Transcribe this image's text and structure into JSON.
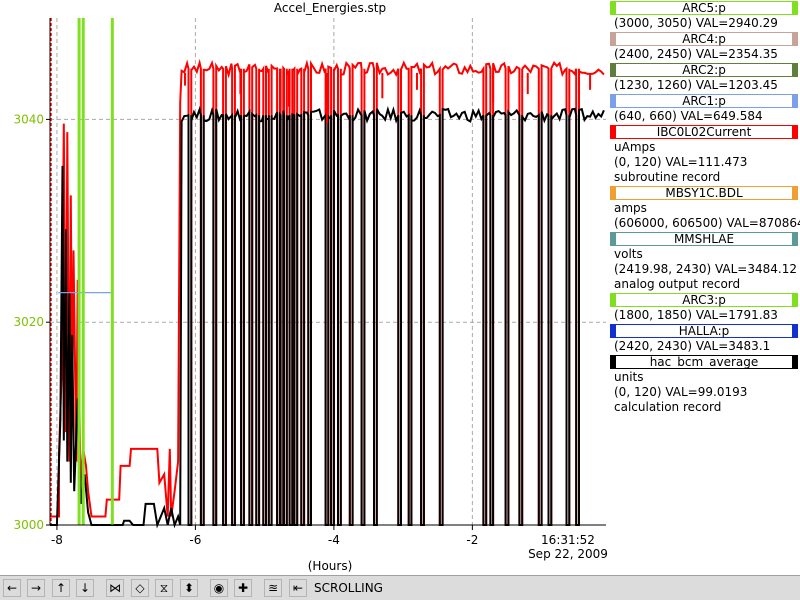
{
  "title": "Accel_Energies.stp",
  "chart_data": {
    "type": "line",
    "title": "Accel_Energies.stp",
    "xlabel": "(Hours)",
    "x_ticks": [
      "-8",
      "-6",
      "-4",
      "-2"
    ],
    "x_tick_values": [
      -8,
      -6,
      -4,
      -2
    ],
    "xlim": [
      -8.1,
      -0.07
    ],
    "right_tick_label": [
      "16:31:52",
      "Sep 22, 2009"
    ],
    "ylim": [
      3000,
      3050
    ],
    "y_ticks": [
      "3000",
      "3020",
      "3040"
    ],
    "y_tick_values": [
      3000,
      3020,
      3040
    ],
    "grid": true,
    "legend_position": "right",
    "series": [
      {
        "name": "IBC0L02Current",
        "color": "#ff0000",
        "axis": "right",
        "points": [
          [
            -8.1,
            2
          ],
          [
            -7.97,
            2
          ],
          [
            -7.97,
            17
          ],
          [
            -7.93,
            37
          ],
          [
            -7.9,
            95
          ],
          [
            -7.87,
            22
          ],
          [
            -7.85,
            93
          ],
          [
            -7.82,
            15
          ],
          [
            -7.8,
            78
          ],
          [
            -7.78,
            28
          ],
          [
            -7.76,
            65
          ],
          [
            -7.72,
            15
          ],
          [
            -7.7,
            58
          ],
          [
            -7.66,
            10
          ],
          [
            -7.62,
            18
          ],
          [
            -7.58,
            14
          ],
          [
            -7.55,
            8
          ],
          [
            -7.5,
            2
          ],
          [
            -7.45,
            2
          ],
          [
            -7.3,
            2
          ],
          [
            -7.28,
            6
          ],
          [
            -7.1,
            6
          ],
          [
            -7.08,
            14
          ],
          [
            -6.95,
            14
          ],
          [
            -6.93,
            18
          ],
          [
            -6.55,
            18
          ],
          [
            -6.52,
            10
          ],
          [
            -6.45,
            12
          ],
          [
            -6.4,
            2
          ],
          [
            -6.37,
            18
          ],
          [
            -6.35,
            2
          ],
          [
            -6.3,
            8
          ],
          [
            -6.25,
            15
          ],
          [
            -6.22,
            100
          ],
          [
            -6.2,
            106
          ],
          [
            -6.1,
            104
          ],
          [
            -5.9,
            106
          ],
          [
            -5.6,
            107
          ],
          [
            -5.3,
            106
          ],
          [
            -5.0,
            107
          ],
          [
            -4.6,
            106
          ],
          [
            -4.2,
            107
          ],
          [
            -3.8,
            107
          ],
          [
            -3.4,
            107
          ],
          [
            -3.0,
            107
          ],
          [
            -2.6,
            107
          ],
          [
            -2.2,
            107
          ],
          [
            -1.8,
            107
          ],
          [
            -1.4,
            107
          ],
          [
            -1.0,
            107
          ],
          [
            -0.6,
            108
          ],
          [
            -0.07,
            108
          ]
        ]
      },
      {
        "name": "hac_bcm_average",
        "color": "#000000",
        "axis": "right",
        "points": [
          [
            -8.1,
            0
          ],
          [
            -8.0,
            0
          ],
          [
            -7.98,
            10
          ],
          [
            -7.95,
            25
          ],
          [
            -7.92,
            85
          ],
          [
            -7.9,
            20
          ],
          [
            -7.87,
            70
          ],
          [
            -7.85,
            15
          ],
          [
            -7.82,
            55
          ],
          [
            -7.8,
            10
          ],
          [
            -7.78,
            45
          ],
          [
            -7.75,
            8
          ],
          [
            -7.7,
            30
          ],
          [
            -7.65,
            5
          ],
          [
            -7.6,
            12
          ],
          [
            -7.55,
            3
          ],
          [
            -7.5,
            0
          ],
          [
            -7.3,
            0
          ],
          [
            -7.05,
            0
          ],
          [
            -7.03,
            1
          ],
          [
            -6.95,
            1
          ],
          [
            -6.9,
            0
          ],
          [
            -6.75,
            0
          ],
          [
            -6.72,
            5
          ],
          [
            -6.6,
            5
          ],
          [
            -6.55,
            0
          ],
          [
            -6.45,
            4
          ],
          [
            -6.4,
            0
          ],
          [
            -6.35,
            4
          ],
          [
            -6.3,
            0
          ],
          [
            -6.25,
            2
          ],
          [
            -6.22,
            0
          ],
          [
            -6.2,
            94
          ],
          [
            -6.1,
            95
          ],
          [
            -5.9,
            95
          ],
          [
            -5.6,
            96
          ],
          [
            -5.3,
            95
          ],
          [
            -5.0,
            96
          ],
          [
            -4.6,
            95
          ],
          [
            -4.2,
            96
          ],
          [
            -3.8,
            96
          ],
          [
            -3.4,
            96
          ],
          [
            -3.0,
            96
          ],
          [
            -2.6,
            96
          ],
          [
            -2.2,
            96
          ],
          [
            -1.8,
            96
          ],
          [
            -1.4,
            96
          ],
          [
            -1.0,
            96
          ],
          [
            -0.6,
            97
          ],
          [
            -0.07,
            97
          ]
        ]
      },
      {
        "name": "ARC1:p",
        "color": "#7ca0e8",
        "axis": "right",
        "points": [
          [
            -7.98,
            55
          ],
          [
            -7.2,
            55
          ]
        ]
      },
      {
        "name": "ARC3:p",
        "color": "#7fe020",
        "axis": "right",
        "style": "vertical",
        "points": [
          [
            -7.68,
            120
          ],
          [
            -7.68,
            0
          ],
          [
            -7.62,
            120
          ],
          [
            -7.62,
            0
          ],
          [
            -7.2,
            120
          ],
          [
            -7.2,
            0
          ]
        ]
      }
    ],
    "dropouts_x": [
      -6.08,
      -5.9,
      -5.72,
      -5.58,
      -5.45,
      -5.32,
      -5.2,
      -5.1,
      -5.0,
      -4.92,
      -4.8,
      -4.75,
      -4.7,
      -4.62,
      -4.55,
      -4.45,
      -4.35,
      -4.1,
      -4.02,
      -3.92,
      -3.75,
      -3.58,
      -3.4,
      -3.05,
      -2.9,
      -2.72,
      -2.45,
      -1.82,
      -1.72,
      -1.5,
      -1.3,
      -1.02,
      -0.88,
      -0.62,
      -0.48
    ],
    "red_spikes": [
      [
        -6.15,
        -3
      ],
      [
        -5.35,
        -5
      ],
      [
        -4.65,
        -8
      ],
      [
        -4.1,
        -12
      ],
      [
        -3.3,
        -6
      ],
      [
        -2.8,
        -4
      ],
      [
        -1.7,
        -7
      ],
      [
        -1.2,
        -5
      ],
      [
        -0.3,
        -4
      ]
    ]
  },
  "legend": [
    {
      "name": "ARC5:p",
      "color": "#7fe020",
      "lines": [
        "(3000, 3050) VAL=2940.29"
      ]
    },
    {
      "name": "ARC4:p",
      "color": "#c9a29a",
      "lines": [
        "(2400, 2450) VAL=2354.35"
      ]
    },
    {
      "name": "ARC2:p",
      "color": "#5c7f3c",
      "lines": [
        "(1230, 1260) VAL=1203.45"
      ]
    },
    {
      "name": "ARC1:p",
      "color": "#7ca0e8",
      "lines": [
        "(640, 660) VAL=649.584"
      ]
    },
    {
      "name": "IBC0L02Current",
      "color": "#ff0000",
      "lines": [
        "uAmps",
        "(0, 120) VAL=111.473",
        "subroutine record"
      ]
    },
    {
      "name": "MBSY1C.BDL",
      "color": "#f0a030",
      "lines": [
        "amps",
        "(606000, 606500) VAL=870864"
      ]
    },
    {
      "name": "MMSHLAE",
      "color": "#5a9a98",
      "lines": [
        "volts",
        "(2419.98, 2430) VAL=3484.12",
        "analog output record"
      ]
    },
    {
      "name": "ARC3:p",
      "color": "#7fe020",
      "lines": [
        "(1800, 1850) VAL=1791.83"
      ]
    },
    {
      "name": "HALLA:p",
      "color": "#1030d0",
      "lines": [
        "(2420, 2430) VAL=3483.1"
      ]
    },
    {
      "name": "hac_bcm_average",
      "color": "#000000",
      "lines": [
        "units",
        "(0, 120) VAL=99.0193",
        "calculation record"
      ]
    }
  ],
  "toolbar": {
    "status": "SCROLLING",
    "buttons": [
      {
        "name": "scroll-left-button",
        "glyph": "←"
      },
      {
        "name": "scroll-right-button",
        "glyph": "→"
      },
      {
        "name": "scroll-up-button",
        "glyph": "↑"
      },
      {
        "name": "scroll-down-button",
        "glyph": "↓"
      },
      {
        "name": "zoom-in-x-button",
        "glyph": "⋈"
      },
      {
        "name": "zoom-out-x-button",
        "glyph": "◇"
      },
      {
        "name": "zoom-in-y-button",
        "glyph": "⧖"
      },
      {
        "name": "zoom-out-y-button",
        "glyph": "⬍"
      },
      {
        "name": "zoom-reset-button",
        "glyph": "◉"
      },
      {
        "name": "add-marker-button",
        "glyph": "✚"
      },
      {
        "name": "autoscale-button",
        "glyph": "≊"
      },
      {
        "name": "scroll-mode-button",
        "glyph": "⇤"
      }
    ]
  }
}
